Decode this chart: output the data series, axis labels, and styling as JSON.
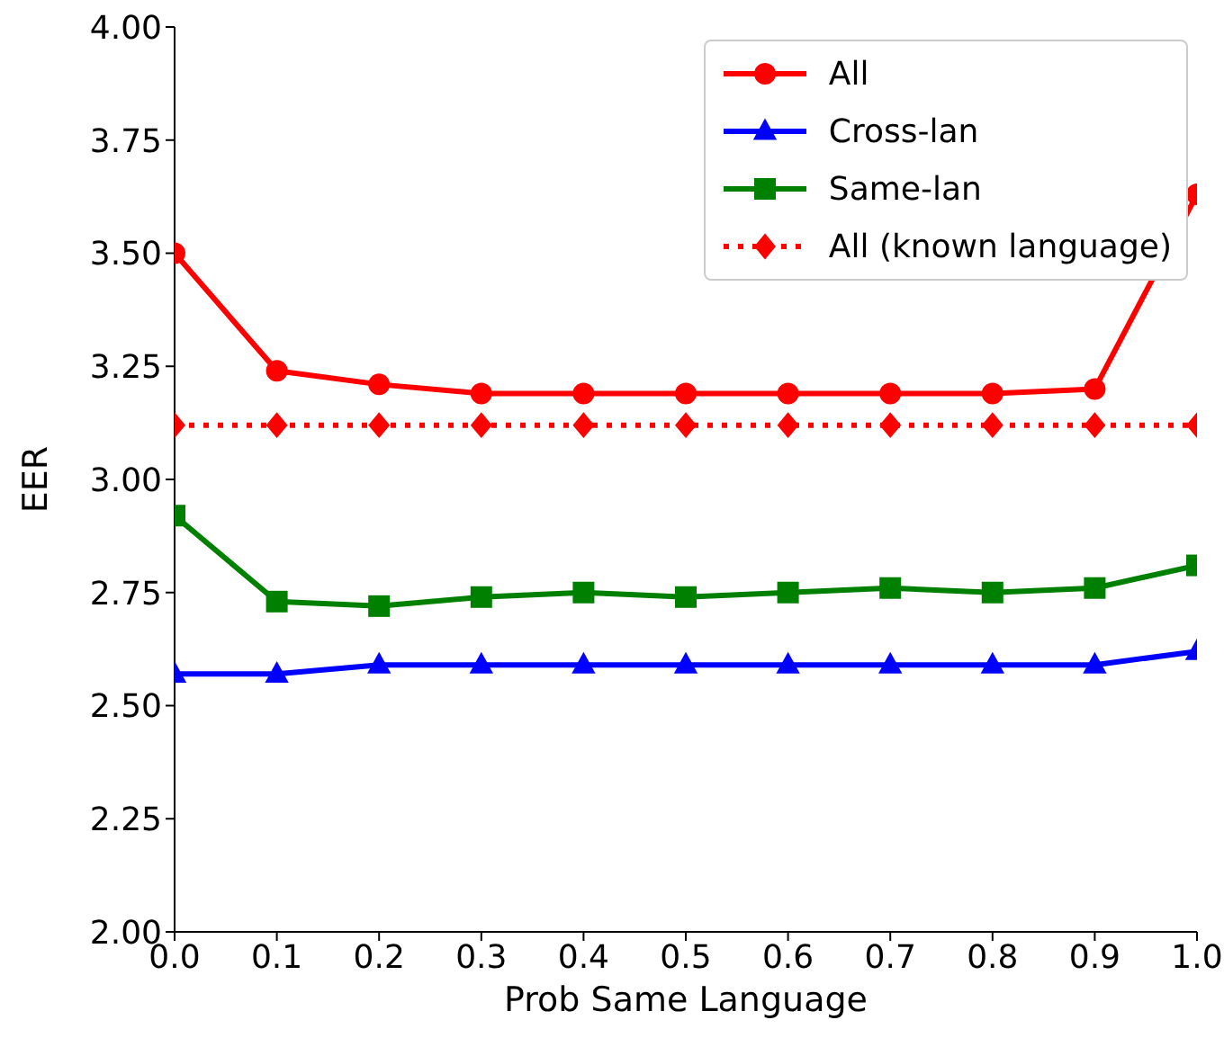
{
  "chart_data": {
    "type": "line",
    "xlabel": "Prob Same Language",
    "ylabel": "EER",
    "x": [
      0.0,
      0.1,
      0.2,
      0.3,
      0.4,
      0.5,
      0.6,
      0.7,
      0.8,
      0.9,
      1.0
    ],
    "series": [
      {
        "name": "All",
        "color": "#ff0000",
        "marker": "circle",
        "line_style": "solid",
        "values": [
          3.5,
          3.24,
          3.21,
          3.19,
          3.19,
          3.19,
          3.19,
          3.19,
          3.19,
          3.2,
          3.63
        ]
      },
      {
        "name": "Cross-lan",
        "color": "#0000ff",
        "marker": "triangle",
        "line_style": "solid",
        "values": [
          2.57,
          2.57,
          2.59,
          2.59,
          2.59,
          2.59,
          2.59,
          2.59,
          2.59,
          2.59,
          2.62
        ]
      },
      {
        "name": "Same-lan",
        "color": "#008000",
        "marker": "square",
        "line_style": "solid",
        "values": [
          2.92,
          2.73,
          2.72,
          2.74,
          2.75,
          2.74,
          2.75,
          2.76,
          2.75,
          2.76,
          2.81
        ]
      },
      {
        "name": "All (known language)",
        "color": "#ff0000",
        "marker": "diamond",
        "line_style": "dotted",
        "values": [
          3.12,
          3.12,
          3.12,
          3.12,
          3.12,
          3.12,
          3.12,
          3.12,
          3.12,
          3.12,
          3.12
        ]
      }
    ],
    "xlim": [
      0.0,
      1.0
    ],
    "xticks": [
      {
        "value": 0,
        "label": "0.0"
      },
      0.1,
      0.2,
      0.3,
      0.4,
      0.5,
      0.6,
      0.7,
      0.8,
      0.9,
      {
        "value": 1,
        "label": "1.0"
      }
    ],
    "ylim": [
      2.0,
      4.0
    ],
    "yticks": [
      {
        "value": 2,
        "label": "2.00"
      },
      2.25,
      {
        "value": 2.5,
        "label": "2.50"
      },
      2.75,
      {
        "value": 3,
        "label": "3.00"
      },
      3.25,
      {
        "value": 3.5,
        "label": "3.50"
      },
      3.75,
      {
        "value": 4,
        "label": "4.00"
      }
    ],
    "grid": false,
    "legend": "top right"
  }
}
